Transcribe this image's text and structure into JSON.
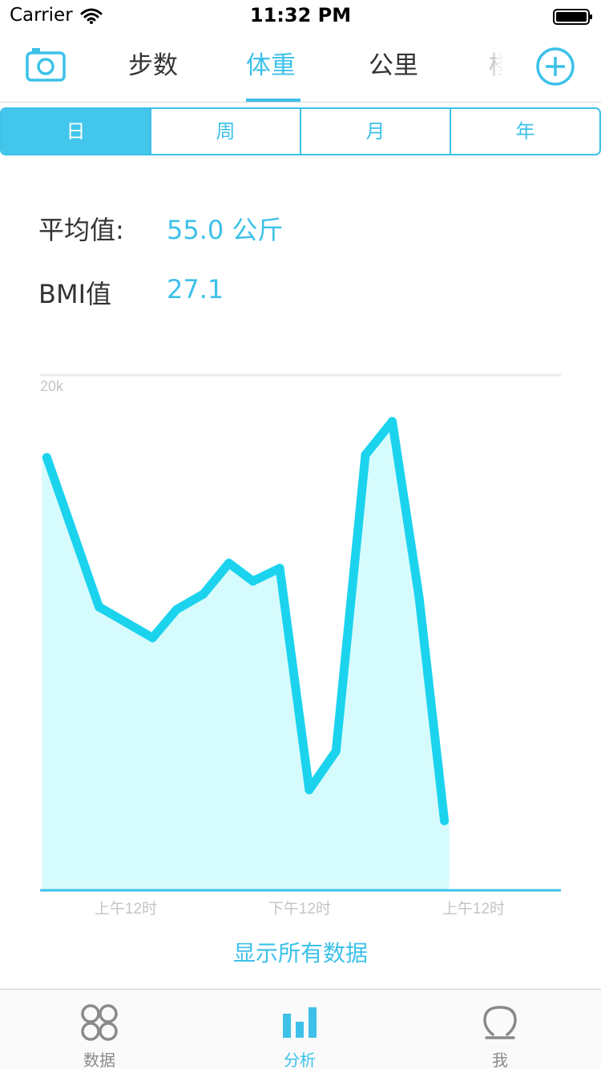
{
  "status": {
    "carrier": "Carrier",
    "time": "11:32 PM"
  },
  "top_tabs": [
    {
      "label": "步数"
    },
    {
      "label": "体重"
    },
    {
      "label": "公里"
    },
    {
      "label": "楼"
    }
  ],
  "top_tabs_active": "体重",
  "segments": [
    {
      "label": "日"
    },
    {
      "label": "周"
    },
    {
      "label": "月"
    },
    {
      "label": "年"
    }
  ],
  "segments_active": "日",
  "stats": {
    "average_label": "平均值:",
    "average_value": "55.0 公斤",
    "bmi_label": "BMI值",
    "bmi_value": "27.1"
  },
  "chart_data": {
    "type": "area",
    "y_tick_label": "20k",
    "x_tick_labels": [
      "上午12时",
      "下午12时",
      "上午12时"
    ],
    "points": [
      [
        0.0,
        16800
      ],
      [
        1.95,
        11000
      ],
      [
        3.95,
        9800
      ],
      [
        4.85,
        10900
      ],
      [
        5.85,
        11500
      ],
      [
        6.8,
        12700
      ],
      [
        7.7,
        12000
      ],
      [
        8.7,
        12500
      ],
      [
        9.8,
        3900
      ],
      [
        10.8,
        5400
      ],
      [
        11.9,
        16900
      ],
      [
        12.9,
        18200
      ],
      [
        13.9,
        11400
      ],
      [
        14.85,
        2700
      ]
    ],
    "x_range": [
      -0.25,
      19.2
    ],
    "ylim": [
      0,
      20000
    ],
    "grid": false,
    "line_color": "#1cd3ee",
    "fill_color": "#d6fbfd",
    "axis_color": "#3dc1e9"
  },
  "show_all_label": "显示所有数据",
  "tabbar": [
    {
      "label": "数据",
      "icon": "data-grid-icon"
    },
    {
      "label": "分析",
      "icon": "bar-chart-icon"
    },
    {
      "label": "我",
      "icon": "profile-icon"
    }
  ],
  "tabbar_active": "分析"
}
